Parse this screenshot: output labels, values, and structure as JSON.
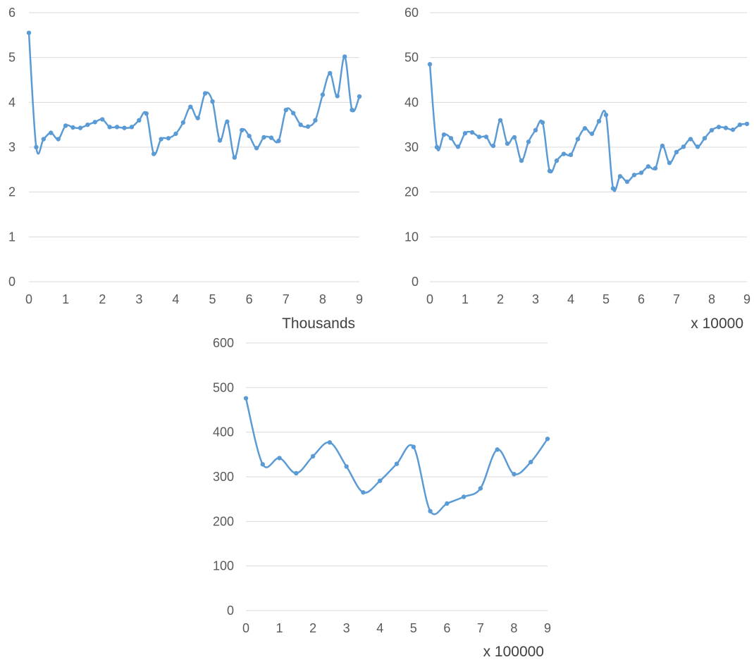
{
  "accent_color": "#5b9bd5",
  "grid_color": "#d9d9d9",
  "chart_data": [
    {
      "type": "line",
      "smoothed": true,
      "markers": true,
      "grid": "horizontal",
      "ylim": [
        0,
        6
      ],
      "yticks": [
        "0",
        "1",
        "2",
        "3",
        "4",
        "5",
        "6"
      ],
      "xlim": [
        0,
        9
      ],
      "xticks": [
        "0",
        "1",
        "2",
        "3",
        "4",
        "5",
        "6",
        "7",
        "8",
        "9"
      ],
      "x_unit_label": "Thousands",
      "series": [
        {
          "x": [
            0,
            0.2,
            0.4,
            0.6,
            0.8,
            1.0,
            1.2,
            1.4,
            1.6,
            1.8,
            2.0,
            2.2,
            2.4,
            2.6,
            2.8,
            3.0,
            3.2,
            3.4,
            3.6,
            3.8,
            4.0,
            4.2,
            4.4,
            4.6,
            4.8,
            5.0,
            5.2,
            5.4,
            5.6,
            5.8,
            6.0,
            6.2,
            6.4,
            6.6,
            6.8,
            7.0,
            7.2,
            7.4,
            7.6,
            7.8,
            8.0,
            8.2,
            8.4,
            8.6,
            8.8,
            9.0
          ],
          "values": [
            5.55,
            3.0,
            3.18,
            3.32,
            3.18,
            3.48,
            3.44,
            3.43,
            3.5,
            3.56,
            3.62,
            3.45,
            3.45,
            3.43,
            3.45,
            3.6,
            3.75,
            2.85,
            3.18,
            3.2,
            3.3,
            3.55,
            3.9,
            3.65,
            4.2,
            4.02,
            3.15,
            3.57,
            2.77,
            3.38,
            3.25,
            2.98,
            3.22,
            3.21,
            3.14,
            3.83,
            3.76,
            3.5,
            3.46,
            3.6,
            4.17,
            4.65,
            4.14,
            5.02,
            3.83,
            4.13
          ]
        }
      ]
    },
    {
      "type": "line",
      "smoothed": true,
      "markers": true,
      "grid": "horizontal",
      "ylim": [
        0,
        60
      ],
      "yticks": [
        "0",
        "10",
        "20",
        "30",
        "40",
        "50",
        "60"
      ],
      "xlim": [
        0,
        9
      ],
      "xticks": [
        "0",
        "1",
        "2",
        "3",
        "4",
        "5",
        "6",
        "7",
        "8",
        "9"
      ],
      "x_unit_label": "x 10000",
      "series": [
        {
          "x": [
            0,
            0.2,
            0.4,
            0.6,
            0.8,
            1.0,
            1.2,
            1.4,
            1.6,
            1.8,
            2.0,
            2.2,
            2.4,
            2.6,
            2.8,
            3.0,
            3.2,
            3.4,
            3.6,
            3.8,
            4.0,
            4.2,
            4.4,
            4.6,
            4.8,
            5.0,
            5.2,
            5.4,
            5.6,
            5.8,
            6.0,
            6.2,
            6.4,
            6.6,
            6.8,
            7.0,
            7.2,
            7.4,
            7.6,
            7.8,
            8.0,
            8.2,
            8.4,
            8.6,
            8.8,
            9.0
          ],
          "values": [
            48.5,
            30.0,
            32.8,
            32.0,
            30.1,
            33.1,
            33.3,
            32.3,
            32.3,
            30.3,
            36.0,
            30.8,
            32.2,
            27.0,
            31.2,
            33.8,
            35.5,
            24.7,
            27.0,
            28.5,
            28.3,
            31.8,
            34.2,
            33.0,
            35.8,
            37.2,
            20.8,
            23.5,
            22.3,
            23.8,
            24.3,
            25.7,
            25.3,
            30.3,
            26.5,
            28.9,
            30.1,
            31.8,
            30.1,
            32.0,
            33.8,
            34.5,
            34.3,
            33.9,
            35.0,
            35.2
          ]
        }
      ]
    },
    {
      "type": "line",
      "smoothed": true,
      "markers": true,
      "grid": "horizontal",
      "ylim": [
        0,
        600
      ],
      "yticks": [
        "0",
        "100",
        "200",
        "300",
        "400",
        "500",
        "600"
      ],
      "xlim": [
        0,
        9
      ],
      "xticks": [
        "0",
        "1",
        "2",
        "3",
        "4",
        "5",
        "6",
        "7",
        "8",
        "9"
      ],
      "x_unit_label": "x 100000",
      "series": [
        {
          "x": [
            0,
            0.5,
            1.0,
            1.5,
            2.0,
            2.5,
            3.0,
            3.5,
            4.0,
            4.5,
            5.0,
            5.5,
            6.0,
            6.5,
            7.0,
            7.5,
            8.0,
            8.5,
            9.0
          ],
          "values": [
            476,
            328,
            342,
            308,
            346,
            377,
            323,
            265,
            291,
            329,
            367,
            223,
            240,
            255,
            274,
            361,
            306,
            333,
            385
          ]
        }
      ]
    }
  ]
}
